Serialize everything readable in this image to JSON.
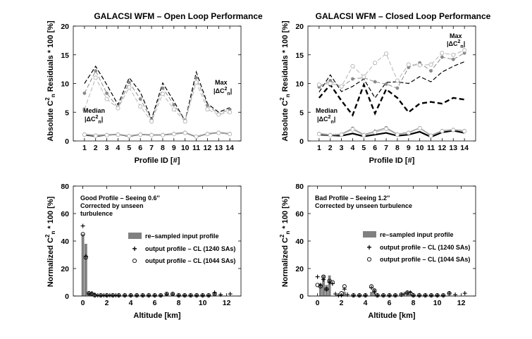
{
  "chart_data": [
    {
      "type": "line",
      "title": "GALACSI WFM – Open Loop Performance",
      "xlabel": "Profile ID [#]",
      "ylabel_parts": {
        "pre": "Absolute C",
        "sup": "2",
        "sub": "n",
        "post": " Residuals * 100 [%]"
      },
      "xlim": [
        0,
        15
      ],
      "ylim": [
        0,
        20
      ],
      "xticks": [
        "1",
        "2",
        "3",
        "4",
        "5",
        "6",
        "7",
        "8",
        "9",
        "10",
        "11",
        "12",
        "13",
        "14"
      ],
      "yticks": [
        "0",
        "5",
        "10",
        "15",
        "20"
      ],
      "x": [
        1,
        2,
        3,
        4,
        5,
        6,
        7,
        8,
        9,
        10,
        11,
        12,
        13,
        14
      ],
      "annotations": [
        {
          "lines": [
            "Max",
            "|ΔC",
            "n",
            "|"
          ],
          "label": "Max |ΔC²n|"
        },
        {
          "lines": [
            "Median",
            "|ΔC",
            "n",
            "|"
          ],
          "label": "Median |ΔC²n|"
        }
      ],
      "series": [
        {
          "name": "Max (reference)",
          "style": "dash-black",
          "values": [
            10,
            13,
            9.8,
            6.3,
            11,
            8.5,
            3.8,
            10.1,
            6.9,
            3.5,
            12,
            6.5,
            5,
            5.8
          ]
        },
        {
          "name": "Max (1240 SAs)",
          "style": "dash-grey-star",
          "values": [
            8.3,
            12.2,
            8.3,
            5.8,
            10.2,
            7.3,
            3.7,
            9.2,
            6.3,
            3.6,
            11,
            6.2,
            4.7,
            5.5
          ]
        },
        {
          "name": "Max (1044 SAs)",
          "style": "dash-grey-circle",
          "values": [
            5.5,
            11,
            7.3,
            5.7,
            9.3,
            6,
            3.4,
            8.2,
            5.5,
            3.4,
            10.2,
            5.5,
            4.6,
            5
          ]
        },
        {
          "name": "Median (reference)",
          "style": "solid-black",
          "values": [
            1,
            0.8,
            1,
            1.1,
            0.8,
            1.1,
            1,
            1,
            1.2,
            1.4,
            0.7,
            1.2,
            1.4,
            1.2
          ]
        },
        {
          "name": "Median (1240 SAs)",
          "style": "solid-grey-star",
          "values": [
            1.2,
            1,
            1.1,
            1.2,
            0.9,
            1.2,
            1.1,
            1.1,
            1.3,
            1.5,
            0.8,
            1.3,
            1.5,
            1.3
          ]
        },
        {
          "name": "Median (1044 SAs)",
          "style": "solid-grey-circle",
          "values": [
            1.1,
            0.9,
            1,
            1.1,
            0.85,
            1.1,
            1,
            1,
            1.2,
            1.4,
            0.75,
            1.2,
            1.4,
            1.2
          ]
        }
      ]
    },
    {
      "type": "line",
      "title": "GALACSI WFM – Closed Loop Performance",
      "xlabel": "Profile ID [#]",
      "ylabel_parts": {
        "pre": "Absolute C",
        "sup": "2",
        "sub": "n",
        "post": " Residuals * 100 [%]"
      },
      "xlim": [
        0,
        15
      ],
      "ylim": [
        0,
        20
      ],
      "xticks": [
        "1",
        "2",
        "3",
        "4",
        "5",
        "6",
        "7",
        "8",
        "9",
        "10",
        "11",
        "12",
        "13",
        "14"
      ],
      "yticks": [
        "0",
        "5",
        "10",
        "15",
        "20"
      ],
      "x": [
        1,
        2,
        3,
        4,
        5,
        6,
        7,
        8,
        9,
        10,
        11,
        12,
        13,
        14
      ],
      "annotations": [
        {
          "lines": [
            "Max",
            "|ΔC",
            "n",
            "|"
          ],
          "label": "Max |ΔC²n|"
        },
        {
          "lines": [
            "Median",
            "|ΔC",
            "n",
            "|"
          ],
          "label": "Median |ΔC²n|"
        }
      ],
      "series": [
        {
          "name": "Max (reference, thick)",
          "style": "thickdash-black",
          "values": [
            7.5,
            9.8,
            7,
            4.5,
            9.8,
            4.8,
            9,
            7.5,
            5,
            6.5,
            6.8,
            6.5,
            7.5,
            7.2
          ]
        },
        {
          "name": "Max (reference)",
          "style": "dash-black",
          "values": [
            8.5,
            11.5,
            8.6,
            9.5,
            10.8,
            7.5,
            10.2,
            10.3,
            10,
            11.2,
            10.3,
            12,
            13,
            13.8
          ]
        },
        {
          "name": "Max (1240 SAs)",
          "style": "dash-grey-star",
          "values": [
            9.4,
            10.5,
            9.4,
            10.8,
            11,
            10.3,
            9.9,
            9.2,
            12.8,
            13.6,
            12.2,
            14.6,
            14.2,
            15.3
          ]
        },
        {
          "name": "Max (1044 SAs)",
          "style": "dash-grey-circle",
          "values": [
            9.8,
            10,
            9.5,
            13,
            11.2,
            13.6,
            15.2,
            10.5,
            13.3,
            13.2,
            13.3,
            15.3,
            15,
            15.8
          ]
        },
        {
          "name": "Median (reference)",
          "style": "thick-black",
          "values": [
            1.1,
            1,
            0.9,
            1.3,
            0.8,
            1.1,
            1.4,
            0.9,
            1.1,
            1.6,
            0.7,
            1.5,
            1.8,
            1.4
          ]
        },
        {
          "name": "Median (1240 SAs)",
          "style": "solid-grey-star",
          "values": [
            1.3,
            1.1,
            1.2,
            2.2,
            1.1,
            1.7,
            2.3,
            1.2,
            1.5,
            2.3,
            1,
            1.8,
            2,
            1.8
          ]
        },
        {
          "name": "Median (1044 SAs)",
          "style": "solid-grey-circle",
          "values": [
            1.2,
            1,
            1.1,
            2,
            1,
            1.5,
            2.1,
            1.1,
            1.4,
            2.2,
            0.9,
            1.7,
            1.9,
            1.7
          ]
        }
      ]
    },
    {
      "type": "bar",
      "annotation_lines": [
        "Good Profile – Seeing 0.6''",
        "Corrected by unseen",
        "turbulence"
      ],
      "xlabel": "Altitude [km]",
      "ylabel_parts": {
        "pre": "Normalized C",
        "sup": "2",
        "sub": "n",
        "post": " * 100 [%]"
      },
      "xlim": [
        -0.8,
        13.2
      ],
      "ylim": [
        0,
        80
      ],
      "xticks": [
        "0",
        "2",
        "4",
        "6",
        "8",
        "10",
        "12"
      ],
      "xtick_values": [
        0,
        2,
        4,
        6,
        8,
        10,
        12
      ],
      "yticks": [
        "0",
        "20",
        "40",
        "60",
        "80"
      ],
      "legend_position": "center-right",
      "legend": [
        "re–sampled input profile",
        "output profile – CL (1240 SAs)",
        "output profile – CL (1044 SAs)"
      ],
      "bars": {
        "x": [
          0,
          0.25,
          0.5,
          0.75,
          7,
          7.5,
          11,
          11.5
        ],
        "values": [
          45,
          38,
          2,
          1.5,
          1.5,
          1,
          3,
          1
        ]
      },
      "plus": {
        "x": [
          0,
          0.25,
          0.5,
          0.75,
          1,
          1.25,
          1.5,
          1.75,
          2,
          2.25,
          2.5,
          2.75,
          3,
          3.5,
          4,
          4.5,
          5,
          5.5,
          6,
          6.5,
          7,
          7.5,
          8,
          8.5,
          9,
          9.5,
          10,
          10.5,
          11,
          11.5,
          12.3
        ],
        "values": [
          51,
          29,
          2,
          2,
          1,
          0.5,
          0.5,
          0.5,
          0.5,
          0.5,
          0.5,
          0.5,
          0.5,
          0.5,
          0.5,
          0.5,
          0.5,
          0.5,
          0.5,
          0.5,
          1.5,
          1.5,
          0.5,
          0.5,
          0.5,
          0.5,
          0.5,
          0.5,
          2.5,
          1,
          1.5
        ]
      },
      "circles": {
        "x": [
          0,
          0.25,
          0.5,
          0.75,
          1,
          1.5,
          2,
          2.5,
          3,
          3.5,
          4,
          4.5,
          5,
          5.5,
          6,
          6.5,
          7,
          7.5,
          8,
          8.5,
          9,
          9.5,
          10,
          10.5,
          11
        ],
        "values": [
          45,
          28,
          2,
          1.5,
          0.5,
          0.5,
          0.5,
          0.5,
          0.5,
          0.5,
          0.5,
          0.5,
          0.5,
          0.5,
          0.5,
          0.5,
          1.5,
          1.5,
          0.5,
          0.5,
          0.5,
          0.5,
          0.5,
          0.5,
          1.5
        ]
      }
    },
    {
      "type": "bar",
      "annotation_lines": [
        "Bad Profile – Seeing 1.2''",
        "Corrected by unseen turbulence"
      ],
      "xlabel": "Altitude [km]",
      "ylabel_parts": {
        "pre": "Normalized C",
        "sup": "2",
        "sub": "n",
        "post": " * 100 [%]"
      },
      "xlim": [
        -0.8,
        13.2
      ],
      "ylim": [
        0,
        80
      ],
      "xticks": [
        "0",
        "2",
        "4",
        "6",
        "8",
        "10",
        "12"
      ],
      "xtick_values": [
        0,
        2,
        4,
        6,
        8,
        10,
        12
      ],
      "yticks": [
        "0",
        "20",
        "40",
        "60",
        "80"
      ],
      "legend_position": "center-right",
      "legend": [
        "re–sampled input profile",
        "output profile – CL (1240 SAs)",
        "output profile – CL (1044 SAs)"
      ],
      "bars": {
        "x": [
          0.25,
          0.5,
          0.75,
          1,
          2.25,
          4.5,
          4.75,
          7.5
        ],
        "values": [
          9,
          15,
          8,
          15,
          3,
          3,
          5,
          2
        ]
      },
      "plus": {
        "x": [
          0,
          0.25,
          0.5,
          0.75,
          1,
          1.25,
          1.5,
          1.75,
          2,
          2.25,
          2.5,
          3,
          3.5,
          4,
          4.5,
          4.75,
          5,
          5.5,
          6,
          6.5,
          7,
          7.25,
          7.5,
          7.75,
          8,
          8.5,
          9,
          9.5,
          10,
          10.5,
          11,
          11.5,
          12.3
        ],
        "values": [
          14,
          8,
          12,
          5,
          10,
          9,
          1.5,
          0.5,
          0.5,
          5,
          1,
          0.5,
          0.5,
          0.5,
          6,
          3,
          0.5,
          0.5,
          0.5,
          0.5,
          1,
          1.5,
          2.5,
          2.5,
          0.5,
          0.5,
          0.5,
          0.5,
          0.5,
          0.5,
          2,
          1,
          2
        ]
      },
      "circles": {
        "x": [
          0,
          0.25,
          0.5,
          0.75,
          1,
          1.25,
          2,
          2.25,
          3,
          3.5,
          4,
          4.5,
          4.75,
          5,
          5.5,
          6,
          6.5,
          7,
          7.5,
          7.75,
          8,
          8.5,
          9,
          9.5,
          10,
          10.5,
          11
        ],
        "values": [
          8,
          7,
          14,
          5,
          11,
          10,
          2,
          7,
          0.5,
          0.5,
          0.5,
          7,
          4,
          0.5,
          0.5,
          0.5,
          0.5,
          1,
          2.5,
          2,
          0.5,
          0.5,
          0.5,
          0.5,
          0.5,
          0.5,
          2
        ]
      }
    }
  ]
}
